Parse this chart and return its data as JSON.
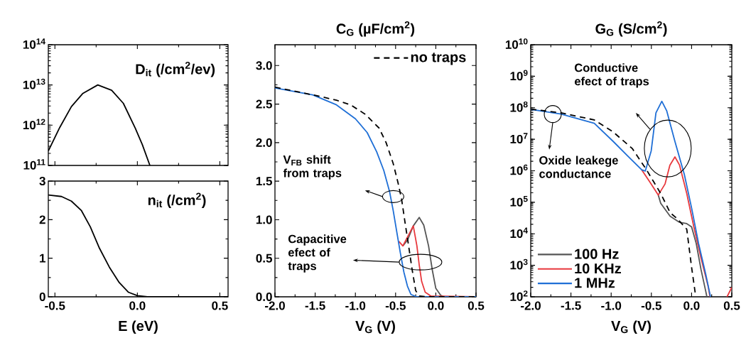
{
  "chart_data": [
    {
      "type": "line",
      "title": "D$_{it}$ (/cm$^{2}$/ev)",
      "log": "y",
      "tick_labels": "y",
      "xlim": [
        -0.54,
        0.55
      ],
      "ylim": [
        100000000000.0,
        100000000000000.0
      ],
      "xticks": [
        -0.5,
        0,
        0.5
      ],
      "yticks": [
        {
          "value": 100000000000.0,
          "label": "10$^{11}$"
        },
        {
          "value": 1000000000000.0,
          "label": "10$^{12}$"
        },
        {
          "value": 10000000000000.0,
          "label": "10$^{13}$"
        },
        {
          "value": 100000000000000.0,
          "label": "10$^{14}$"
        }
      ],
      "series": [
        {
          "color": "#000000",
          "x": [
            -0.54,
            -0.47,
            -0.4,
            -0.33,
            -0.24,
            -0.156,
            -0.085,
            -0.013,
            0.03,
            0.076
          ],
          "values": [
            230000000000.0,
            890000000000.0,
            2900000000000.0,
            6200000000000.0,
            10000000000000.0,
            7400000000000.0,
            3500000000000.0,
            850000000000.0,
            330000000000.0,
            100000000000.0
          ]
        }
      ]
    },
    {
      "type": "line",
      "title": "n$_{it}$ (/cm$^{2}$)",
      "xlabel": "E (eV)",
      "xlim": [
        -0.54,
        0.55
      ],
      "ylim": [
        0,
        3
      ],
      "xticks": [
        -0.5,
        {
          "value": 0,
          "label": "0.0"
        },
        0.5
      ],
      "yticks": [
        0,
        1,
        2,
        3
      ],
      "series": [
        {
          "color": "#000000",
          "x": [
            -0.54,
            -0.46,
            -0.4,
            -0.34,
            -0.285,
            -0.23,
            -0.17,
            -0.11,
            -0.055,
            0.0,
            0.06,
            0.2,
            0.55
          ],
          "values": [
            2.64,
            2.6,
            2.48,
            2.24,
            1.81,
            1.26,
            0.77,
            0.37,
            0.12,
            0.03,
            0.0,
            0.0,
            0.0
          ]
        }
      ]
    },
    {
      "type": "line",
      "title": "C$_{G}$ (µF/cm$^{2}$)",
      "xlabel": "V$_{G}$ (V)",
      "legend": "top right",
      "xlim": [
        -2,
        0.5
      ],
      "ylim": [
        0,
        3.27
      ],
      "xticks": [
        {
          "value": -2,
          "label": "-2.0"
        },
        -1.5,
        {
          "value": -1,
          "label": "-1.0"
        },
        -0.5,
        {
          "value": 0,
          "label": "0.0"
        },
        0.5
      ],
      "yticks": [
        {
          "value": 0,
          "label": "0.0"
        },
        0.5,
        {
          "value": 1,
          "label": "1.0"
        },
        1.5,
        {
          "value": 2,
          "label": "2.0"
        },
        2.5,
        {
          "value": 3,
          "label": "3.0"
        }
      ],
      "annotations": [
        "V$_{FB}$ shift from traps",
        "Capacitive efect of traps"
      ],
      "series": [
        {
          "color": "#555555",
          "x": [
            -0.41,
            -0.35,
            -0.28,
            -0.206,
            -0.15,
            -0.09,
            -0.044,
            0.0,
            0.06,
            0.1,
            0.5
          ],
          "values": [
            0.66,
            0.74,
            0.92,
            1.03,
            0.93,
            0.66,
            0.35,
            0.11,
            0.02,
            0.0,
            0.0
          ]
        },
        {
          "color": "#e8383d",
          "x": [
            -0.46,
            -0.41,
            -0.35,
            -0.28,
            -0.235,
            -0.206,
            -0.176,
            -0.132,
            -0.06,
            0.5
          ],
          "values": [
            0.72,
            0.66,
            0.78,
            0.92,
            0.66,
            0.41,
            0.2,
            0.06,
            0.01,
            0.0
          ]
        },
        {
          "color": "#1f6fd6",
          "x": [
            -2.0,
            -1.53,
            -1.235,
            -1.0,
            -0.853,
            -0.735,
            -0.647,
            -0.574,
            -0.53,
            -0.485,
            -0.441,
            -0.397,
            -0.353,
            -0.309,
            -0.235,
            0.5
          ],
          "values": [
            2.71,
            2.62,
            2.49,
            2.31,
            2.13,
            1.88,
            1.64,
            1.36,
            1.12,
            0.84,
            0.57,
            0.32,
            0.14,
            0.03,
            0.0,
            0.0
          ]
        },
        {
          "name": "no traps",
          "color": "#000000",
          "line_style": "dashed",
          "x": [
            -2.0,
            -1.44,
            -1.235,
            -1.06,
            -0.88,
            -0.706,
            -0.618,
            -0.53,
            -0.47,
            -0.426,
            -0.382,
            -0.338,
            -0.294,
            -0.25,
            -0.206,
            -0.1,
            0.5
          ],
          "values": [
            2.72,
            2.6,
            2.55,
            2.49,
            2.37,
            2.19,
            2.0,
            1.73,
            1.48,
            1.27,
            0.96,
            0.66,
            0.35,
            0.08,
            0.01,
            0.0,
            0.0
          ]
        }
      ]
    },
    {
      "type": "line",
      "title": "G$_{G}$ (S/cm$^{2}$)",
      "xlabel": "V$_{G}$ (V)",
      "log": "y",
      "legend": "bottom left",
      "xlim": [
        -2,
        0.5
      ],
      "ylim": [
        100,
        10000000000.0
      ],
      "xticks": [
        {
          "value": -2,
          "label": "-2.0"
        },
        -1.5,
        {
          "value": -1,
          "label": "-1.0"
        },
        -0.5,
        {
          "value": 0,
          "label": "0.0"
        },
        0.5
      ],
      "yticks": [
        {
          "value": 100.0,
          "label": "10$^{2}$"
        },
        {
          "value": 1000.0,
          "label": "10$^{3}$"
        },
        {
          "value": 10000.0,
          "label": "10$^{4}$"
        },
        {
          "value": 100000.0,
          "label": "10$^{5}$"
        },
        {
          "value": 1000000.0,
          "label": "10$^{6}$"
        },
        {
          "value": 10000000.0,
          "label": "10$^{7}$"
        },
        {
          "value": 100000000.0,
          "label": "10$^{8}$"
        },
        {
          "value": 1000000000.0,
          "label": "10$^{9}$"
        },
        {
          "value": 10000000000.0,
          "label": "10$^{10}$"
        }
      ],
      "annotations": [
        "Oxide leakege conductance",
        "Conductive efect of traps"
      ],
      "series": [
        {
          "name": "100 Hz",
          "color": "#555555",
          "x": [
            -0.414,
            -0.384,
            -0.267,
            -0.149,
            -0.06,
            0.0,
            0.058,
            0.117,
            0.176,
            0.19
          ],
          "values": [
            170000.0,
            93000.0,
            36000.0,
            23000.0,
            21000.0,
            16600.0,
            4900.0,
            740.0,
            150.0,
            100.0
          ]
        },
        {
          "name": "10 KHz",
          "color": "#e8383d",
          "x": [
            -0.62,
            -0.502,
            -0.414,
            -0.33,
            -0.27,
            -0.207,
            -0.149,
            -0.06,
            0.028,
            0.117,
            0.205,
            0.229,
            0.33,
            0.441,
            0.5
          ],
          "values": [
            1070000.0,
            380000.0,
            170000.0,
            380000.0,
            1500000.0,
            2750000.0,
            1500000.0,
            190000.0,
            16600.0,
            1700.0,
            220.0,
            100.0,
            null,
            100.0,
            200.0
          ]
        },
        {
          "name": "1 MHz",
          "color": "#1f6fd6",
          "x": [
            -2.0,
            -1.623,
            -1.21,
            -0.974,
            -0.797,
            -0.62,
            -0.576,
            -0.502,
            -0.443,
            -0.37,
            -0.31,
            -0.207,
            -0.09,
            0.0,
            0.087,
            0.176,
            0.235
          ],
          "values": [
            89000000.0,
            63000000.0,
            32000000.0,
            8500000.0,
            3000000.0,
            1070000.0,
            980000.0,
            4300000.0,
            69000000.0,
            160000000.0,
            81000000.0,
            8500000.0,
            760000.0,
            66000.0,
            4900.0,
            520.0,
            100.0
          ]
        },
        {
          "color": "#000000",
          "line_style": "dashed",
          "x": [
            -2.0,
            -1.623,
            -1.21,
            -0.974,
            -0.738,
            -0.56,
            -0.384,
            -0.267,
            -0.178,
            -0.06,
            0.0,
            0.052
          ],
          "values": [
            91000000.0,
            69000000.0,
            41000000.0,
            17000000.0,
            5100000.0,
            1070000.0,
            190000.0,
            47000.0,
            30000.0,
            14000.0,
            870.0,
            100.0
          ]
        }
      ]
    }
  ]
}
